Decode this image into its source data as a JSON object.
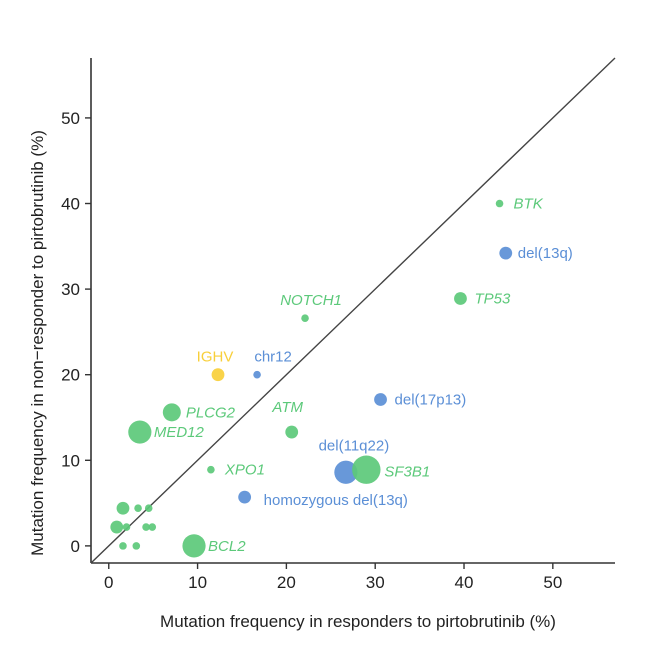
{
  "chart_data": {
    "type": "scatter",
    "title": "",
    "xlabel": "Mutation frequency in responders to pirtobrutinib (%)",
    "ylabel": "Mutation frequency in  non−responder to pirtobrutinib (%)",
    "xlim": [
      -2,
      57
    ],
    "ylim": [
      -2,
      57
    ],
    "x_ticks": [
      "0",
      "10",
      "20",
      "30",
      "40",
      "50"
    ],
    "y_ticks": [
      "0",
      "10",
      "20",
      "30",
      "40",
      "50"
    ],
    "reference_line": "y = x",
    "grid": false,
    "colors": {
      "gene_mutation": "#5cc97a",
      "copy_number": "#5b8fd6",
      "ighv": "#f8cf3a",
      "axis": "#333333"
    },
    "points": [
      {
        "label": "BTK",
        "x": 44,
        "y": 40,
        "size": 1,
        "category": "gene_mutation"
      },
      {
        "label": "del(13q)",
        "x": 44.7,
        "y": 34.2,
        "size": 2,
        "category": "copy_number"
      },
      {
        "label": "TP53",
        "x": 39.6,
        "y": 28.9,
        "size": 2,
        "category": "gene_mutation"
      },
      {
        "label": "NOTCH1",
        "x": 22.1,
        "y": 26.6,
        "size": 1,
        "category": "gene_mutation"
      },
      {
        "label": "IGHV",
        "x": 12.3,
        "y": 20,
        "size": 2,
        "category": "ighv"
      },
      {
        "label": "chr12",
        "x": 16.7,
        "y": 20,
        "size": 1,
        "category": "copy_number"
      },
      {
        "label": "del(17p13)",
        "x": 30.6,
        "y": 17.1,
        "size": 2,
        "category": "copy_number"
      },
      {
        "label": "PLCG2",
        "x": 7.1,
        "y": 15.6,
        "size": 3,
        "category": "gene_mutation"
      },
      {
        "label": "ATM",
        "x": 20.6,
        "y": 13.3,
        "size": 2,
        "category": "gene_mutation"
      },
      {
        "label": "MED12",
        "x": 3.5,
        "y": 13.3,
        "size": 4,
        "category": "gene_mutation"
      },
      {
        "label": "del(11q22)",
        "x": 26.7,
        "y": 8.6,
        "size": 4,
        "category": "copy_number"
      },
      {
        "label": "SF3B1",
        "x": 29,
        "y": 8.9,
        "size": 5,
        "category": "gene_mutation"
      },
      {
        "label": "XPO1",
        "x": 11.5,
        "y": 8.9,
        "size": 1,
        "category": "gene_mutation"
      },
      {
        "label": "homozygous del(13q)",
        "x": 15.3,
        "y": 5.7,
        "size": 2,
        "category": "copy_number"
      },
      {
        "label": "BCL2",
        "x": 9.6,
        "y": 0,
        "size": 4,
        "category": "gene_mutation"
      },
      {
        "label": "",
        "x": 1.6,
        "y": 4.4,
        "size": 2,
        "category": "gene_mutation"
      },
      {
        "label": "",
        "x": 3.3,
        "y": 4.4,
        "size": 1,
        "category": "gene_mutation"
      },
      {
        "label": "",
        "x": 4.5,
        "y": 4.4,
        "size": 1,
        "category": "gene_mutation"
      },
      {
        "label": "",
        "x": 0.9,
        "y": 2.2,
        "size": 2,
        "category": "gene_mutation"
      },
      {
        "label": "",
        "x": 2,
        "y": 2.2,
        "size": 1,
        "category": "gene_mutation"
      },
      {
        "label": "",
        "x": 4.2,
        "y": 2.2,
        "size": 1,
        "category": "gene_mutation"
      },
      {
        "label": "",
        "x": 4.9,
        "y": 2.2,
        "size": 1,
        "category": "gene_mutation"
      },
      {
        "label": "",
        "x": 1.6,
        "y": 0,
        "size": 1,
        "category": "gene_mutation"
      },
      {
        "label": "",
        "x": 3.1,
        "y": 0,
        "size": 1,
        "category": "gene_mutation"
      }
    ]
  }
}
